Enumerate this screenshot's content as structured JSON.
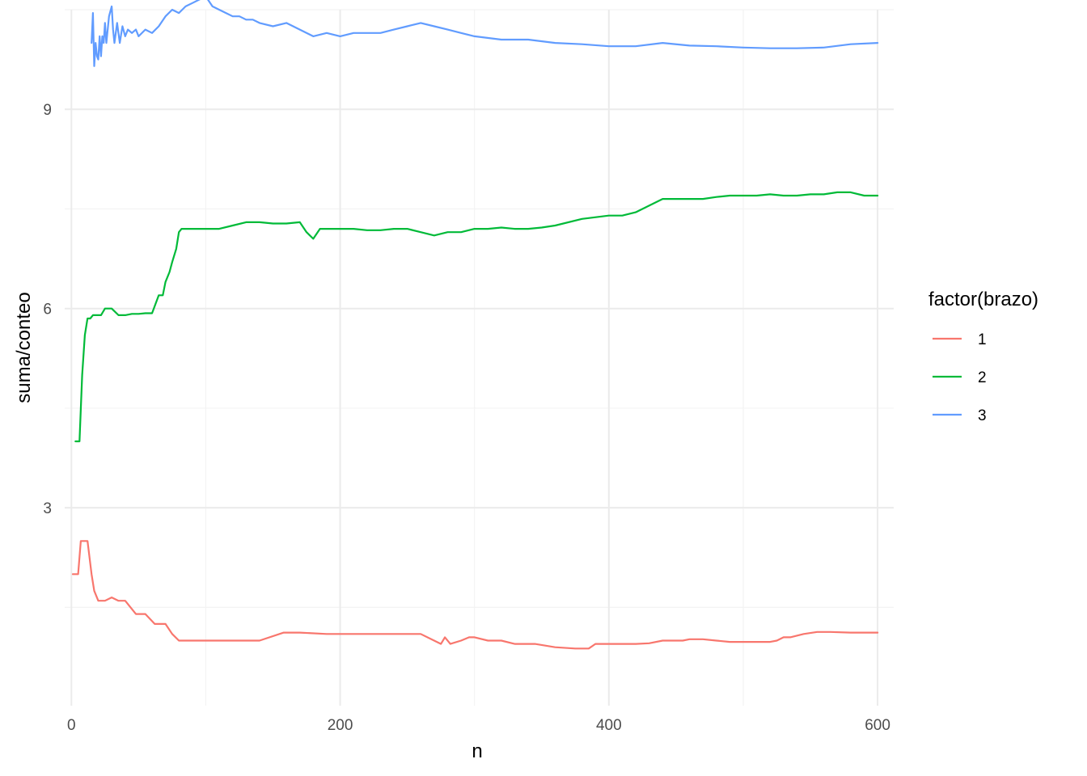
{
  "chart_data": {
    "type": "line",
    "xlabel": "n",
    "ylabel": "suma/conteo",
    "xlim": [
      -5,
      612
    ],
    "ylim": [
      0.02,
      10.5
    ],
    "x_ticks": [
      0,
      200,
      400,
      600
    ],
    "x_tick_labels": [
      "0",
      "200",
      "400",
      "600"
    ],
    "y_ticks": [
      3,
      6,
      9
    ],
    "y_tick_labels": [
      "3",
      "6",
      "9"
    ],
    "grid": true,
    "legend": {
      "title": "factor(brazo)",
      "position": "right"
    },
    "series": [
      {
        "name": "1",
        "color": "#F8766D",
        "x": [
          1,
          5,
          7,
          12,
          15,
          17,
          20,
          25,
          30,
          35,
          40,
          48,
          55,
          62,
          70,
          75,
          80,
          85,
          100,
          120,
          140,
          158,
          170,
          190,
          205,
          220,
          240,
          260,
          270,
          275,
          278,
          282,
          290,
          296,
          300,
          310,
          320,
          330,
          345,
          360,
          375,
          385,
          390,
          400,
          420,
          430,
          440,
          455,
          460,
          470,
          480,
          490,
          500,
          510,
          520,
          525,
          530,
          535,
          545,
          555,
          565,
          580,
          595,
          600
        ],
        "values": [
          2.0,
          2.0,
          2.5,
          2.5,
          2.0,
          1.75,
          1.6,
          1.6,
          1.65,
          1.6,
          1.6,
          1.4,
          1.4,
          1.25,
          1.25,
          1.1,
          1.0,
          1.0,
          1.0,
          1.0,
          1.0,
          1.12,
          1.12,
          1.1,
          1.1,
          1.1,
          1.1,
          1.1,
          1.0,
          0.95,
          1.05,
          0.95,
          1.0,
          1.05,
          1.05,
          1.0,
          1.0,
          0.95,
          0.95,
          0.9,
          0.88,
          0.88,
          0.95,
          0.95,
          0.95,
          0.96,
          1.0,
          1.0,
          1.02,
          1.02,
          1.0,
          0.98,
          0.98,
          0.98,
          0.98,
          1.0,
          1.05,
          1.05,
          1.1,
          1.13,
          1.13,
          1.12,
          1.12,
          1.12
        ]
      },
      {
        "name": "2",
        "color": "#00BA38",
        "x": [
          3,
          6,
          8,
          10,
          12,
          14,
          16,
          20,
          22,
          25,
          28,
          30,
          35,
          40,
          45,
          50,
          55,
          60,
          65,
          68,
          70,
          73,
          75,
          78,
          80,
          82,
          85,
          90,
          100,
          110,
          120,
          130,
          140,
          150,
          160,
          170,
          175,
          180,
          185,
          190,
          200,
          210,
          220,
          230,
          240,
          250,
          260,
          270,
          280,
          290,
          300,
          310,
          320,
          330,
          340,
          350,
          360,
          380,
          400,
          410,
          420,
          425,
          430,
          440,
          450,
          460,
          470,
          480,
          490,
          500,
          510,
          520,
          530,
          540,
          550,
          560,
          570,
          580,
          590,
          600
        ],
        "values": [
          4.0,
          4.0,
          5.0,
          5.6,
          5.85,
          5.85,
          5.9,
          5.9,
          5.9,
          6.0,
          6.0,
          6.0,
          5.9,
          5.9,
          5.92,
          5.92,
          5.93,
          5.93,
          6.2,
          6.2,
          6.4,
          6.55,
          6.7,
          6.9,
          7.15,
          7.2,
          7.2,
          7.2,
          7.2,
          7.2,
          7.25,
          7.3,
          7.3,
          7.28,
          7.28,
          7.3,
          7.15,
          7.05,
          7.2,
          7.2,
          7.2,
          7.2,
          7.18,
          7.18,
          7.2,
          7.2,
          7.15,
          7.1,
          7.15,
          7.15,
          7.2,
          7.2,
          7.22,
          7.2,
          7.2,
          7.22,
          7.25,
          7.35,
          7.4,
          7.4,
          7.45,
          7.5,
          7.55,
          7.65,
          7.65,
          7.65,
          7.65,
          7.68,
          7.7,
          7.7,
          7.7,
          7.72,
          7.7,
          7.7,
          7.72,
          7.72,
          7.75,
          7.75,
          7.7,
          7.7
        ]
      },
      {
        "name": "3",
        "color": "#619CFF",
        "x": [
          15,
          16,
          17,
          18,
          19,
          20,
          21,
          22,
          23,
          24,
          25,
          26,
          28,
          30,
          31,
          32,
          34,
          36,
          38,
          40,
          42,
          45,
          48,
          50,
          55,
          60,
          65,
          70,
          75,
          80,
          85,
          90,
          95,
          100,
          105,
          110,
          115,
          120,
          125,
          130,
          135,
          140,
          150,
          160,
          170,
          180,
          190,
          200,
          210,
          220,
          230,
          240,
          250,
          260,
          270,
          280,
          290,
          300,
          320,
          340,
          360,
          380,
          400,
          420,
          440,
          460,
          480,
          500,
          520,
          540,
          560,
          580,
          600
        ],
        "values": [
          10.0,
          10.45,
          9.65,
          10.0,
          9.8,
          9.75,
          10.1,
          9.8,
          10.1,
          10.0,
          10.3,
          10.0,
          10.4,
          10.55,
          10.2,
          10.0,
          10.3,
          10.0,
          10.25,
          10.1,
          10.2,
          10.15,
          10.2,
          10.1,
          10.2,
          10.15,
          10.25,
          10.4,
          10.5,
          10.45,
          10.55,
          10.6,
          10.65,
          10.7,
          10.55,
          10.5,
          10.45,
          10.4,
          10.4,
          10.35,
          10.35,
          10.3,
          10.25,
          10.3,
          10.2,
          10.1,
          10.15,
          10.1,
          10.15,
          10.15,
          10.15,
          10.2,
          10.25,
          10.3,
          10.25,
          10.2,
          10.15,
          10.1,
          10.05,
          10.05,
          10.0,
          9.98,
          9.95,
          9.95,
          10.0,
          9.96,
          9.95,
          9.93,
          9.92,
          9.92,
          9.93,
          9.98,
          10.0
        ]
      }
    ]
  }
}
